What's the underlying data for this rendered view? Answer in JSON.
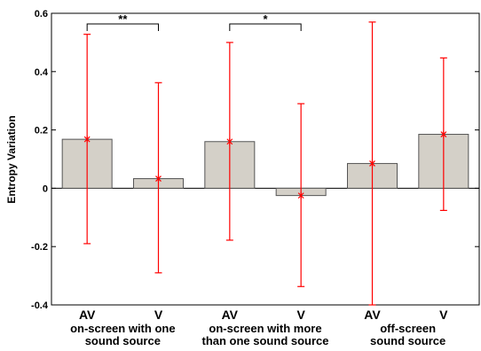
{
  "chart_data": {
    "type": "bar",
    "ylabel": "Entropy Variation",
    "ylim": [
      -0.4,
      0.6
    ],
    "yticks": [
      -0.4,
      -0.2,
      0,
      0.2,
      0.4,
      0.6
    ],
    "ytick_labels": [
      "-0.4",
      "-0.2",
      "0",
      "0.2",
      "0.4",
      "0.6"
    ],
    "categories": [
      "AV",
      "V",
      "AV",
      "V",
      "AV",
      "V"
    ],
    "values": [
      0.168,
      0.033,
      0.16,
      -0.025,
      0.085,
      0.185
    ],
    "error_low": [
      -0.19,
      -0.29,
      -0.178,
      -0.337,
      -0.4,
      -0.076
    ],
    "error_high": [
      0.528,
      0.362,
      0.5,
      0.29,
      0.57,
      0.447
    ],
    "groups": [
      {
        "label_lines": [
          "on-screen with one",
          "sound source"
        ],
        "bars": [
          0,
          1
        ]
      },
      {
        "label_lines": [
          "on-screen with more",
          "than one sound source"
        ],
        "bars": [
          2,
          3
        ]
      },
      {
        "label_lines": [
          "off-screen",
          "sound source"
        ],
        "bars": [
          4,
          5
        ]
      }
    ],
    "significance": [
      {
        "bars": [
          0,
          1
        ],
        "label": "**"
      },
      {
        "bars": [
          2,
          3
        ],
        "label": "*"
      }
    ],
    "colors": {
      "bar_fill": "#d4d0c8",
      "bar_stroke": "#555555",
      "error": "#ff0000",
      "axis": "#000000"
    }
  }
}
